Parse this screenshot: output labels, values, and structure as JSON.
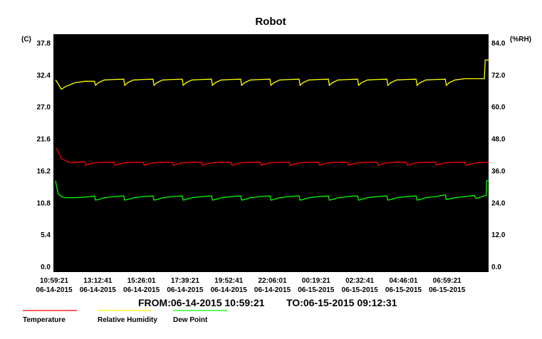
{
  "chart_data": {
    "type": "line",
    "title": "Robot",
    "left_unit": "(C)",
    "right_unit": "(%RH)",
    "left_ticks": [
      "37.8",
      "32.4",
      "27.0",
      "21.6",
      "16.2",
      "10.8",
      "5.4",
      "0.0"
    ],
    "left_ylim": [
      0.0,
      37.8
    ],
    "right_ticks": [
      "84.0",
      "72.0",
      "60.0",
      "48.0",
      "36.0",
      "24.0",
      "12.0",
      "0.0"
    ],
    "right_ylim": [
      0.0,
      84.0
    ],
    "x_ticks": [
      {
        "time": "10:59:21",
        "date": "06-14-2015"
      },
      {
        "time": "13:12:41",
        "date": "06-14-2015"
      },
      {
        "time": "15:26:01",
        "date": "06-14-2015"
      },
      {
        "time": "17:39:21",
        "date": "06-14-2015"
      },
      {
        "time": "19:52:41",
        "date": "06-14-2015"
      },
      {
        "time": "22:06:01",
        "date": "06-14-2015"
      },
      {
        "time": "00:19:21",
        "date": "06-15-2015"
      },
      {
        "time": "02:32:41",
        "date": "06-15-2015"
      },
      {
        "time": "04:46:01",
        "date": "06-15-2015"
      },
      {
        "time": "06:59:21",
        "date": "06-15-2015"
      }
    ],
    "x_range_hours": [
      0.0,
      22.22
    ],
    "grid": false,
    "background": "#000000",
    "range_text": {
      "from": "FROM:06-14-2015 10:59:21",
      "to": "TO:06-15-2015 09:12:31"
    },
    "series": [
      {
        "name": "Temperature",
        "axis": "left",
        "color": "#ff0000",
        "hours": [
          0.0,
          0.07,
          0.3,
          0.7,
          1.2,
          1.5,
          1.55,
          1.65,
          2.0,
          2.5,
          2.8,
          3.0,
          3.05,
          3.15,
          3.5,
          4.0,
          4.3,
          4.5,
          4.55,
          4.65,
          5.0,
          5.5,
          5.8,
          6.0,
          6.05,
          6.15,
          6.5,
          7.0,
          7.3,
          7.5,
          7.55,
          7.65,
          8.0,
          8.5,
          8.8,
          9.0,
          9.05,
          9.15,
          9.5,
          10.0,
          10.3,
          10.5,
          10.55,
          10.65,
          11.0,
          11.5,
          11.8,
          12.0,
          12.05,
          12.15,
          12.5,
          13.0,
          13.3,
          13.5,
          13.55,
          13.65,
          14.0,
          14.5,
          14.8,
          15.0,
          15.05,
          15.15,
          15.5,
          16.0,
          16.3,
          16.5,
          16.55,
          16.65,
          17.0,
          17.5,
          17.8,
          18.0,
          18.05,
          18.15,
          18.5,
          19.0,
          19.3,
          19.5,
          19.55,
          19.65,
          20.0,
          20.5,
          20.8,
          21.0,
          21.05,
          21.15,
          21.6,
          22.22
        ],
        "values": [
          20.0,
          19.8,
          18.2,
          17.6,
          17.6,
          17.7,
          17.1,
          17.2,
          17.5,
          17.6,
          17.6,
          17.6,
          17.1,
          17.2,
          17.5,
          17.6,
          17.6,
          17.6,
          17.1,
          17.2,
          17.5,
          17.6,
          17.6,
          17.6,
          17.1,
          17.2,
          17.5,
          17.6,
          17.6,
          17.6,
          17.1,
          17.2,
          17.5,
          17.6,
          17.6,
          17.6,
          17.1,
          17.2,
          17.5,
          17.6,
          17.6,
          17.6,
          17.1,
          17.2,
          17.5,
          17.6,
          17.6,
          17.6,
          17.1,
          17.2,
          17.5,
          17.6,
          17.6,
          17.6,
          17.1,
          17.2,
          17.5,
          17.6,
          17.6,
          17.6,
          17.1,
          17.2,
          17.5,
          17.6,
          17.6,
          17.6,
          17.1,
          17.2,
          17.5,
          17.6,
          17.6,
          17.6,
          17.1,
          17.2,
          17.5,
          17.6,
          17.6,
          17.6,
          17.1,
          17.2,
          17.5,
          17.6,
          17.6,
          17.6,
          17.1,
          17.2,
          17.5,
          17.6
        ]
      },
      {
        "name": "Relative Humidity",
        "axis": "right",
        "color": "#ffff00",
        "hours": [
          0.0,
          0.1,
          0.3,
          0.5,
          1.0,
          1.5,
          1.8,
          2.0,
          2.05,
          2.2,
          2.5,
          3.0,
          3.5,
          3.55,
          3.7,
          4.0,
          4.5,
          5.0,
          5.05,
          5.2,
          5.5,
          6.0,
          6.5,
          6.55,
          6.7,
          7.0,
          7.5,
          8.0,
          8.05,
          8.2,
          8.5,
          9.0,
          9.5,
          9.55,
          9.7,
          10.0,
          10.5,
          11.0,
          11.05,
          11.2,
          11.5,
          12.0,
          12.5,
          12.55,
          12.7,
          13.0,
          13.5,
          14.0,
          14.05,
          14.2,
          14.5,
          15.0,
          15.5,
          15.55,
          15.7,
          16.0,
          16.5,
          17.0,
          17.05,
          17.2,
          17.5,
          18.0,
          18.5,
          18.55,
          18.7,
          19.0,
          19.5,
          20.0,
          20.05,
          20.2,
          20.5,
          21.0,
          21.9,
          22.0,
          22.05,
          22.22
        ],
        "values": [
          70.0,
          69.0,
          66.5,
          67.5,
          69.0,
          69.5,
          69.5,
          69.5,
          68.0,
          69.0,
          70.0,
          70.2,
          70.3,
          68.0,
          69.0,
          70.0,
          70.2,
          70.3,
          68.0,
          69.0,
          70.0,
          70.2,
          70.3,
          68.0,
          69.0,
          70.0,
          70.2,
          70.3,
          68.0,
          69.0,
          70.0,
          70.2,
          70.3,
          68.0,
          69.0,
          70.0,
          70.2,
          70.3,
          68.0,
          69.0,
          70.0,
          70.2,
          70.3,
          68.0,
          69.0,
          70.0,
          70.2,
          70.3,
          68.0,
          69.0,
          70.0,
          70.2,
          70.3,
          68.0,
          69.0,
          70.0,
          70.2,
          70.3,
          68.0,
          69.0,
          70.0,
          70.2,
          70.3,
          68.0,
          69.0,
          70.0,
          70.2,
          70.3,
          68.0,
          69.0,
          70.0,
          70.5,
          70.5,
          70.5,
          77.5,
          77.5
        ]
      },
      {
        "name": "Dew Point",
        "axis": "left",
        "color": "#00ff00",
        "hours": [
          0.0,
          0.05,
          0.15,
          0.3,
          0.5,
          1.0,
          1.5,
          1.8,
          2.0,
          2.05,
          2.2,
          2.5,
          3.0,
          3.5,
          3.55,
          3.7,
          4.0,
          4.5,
          5.0,
          5.05,
          5.2,
          5.5,
          6.0,
          6.5,
          6.55,
          6.7,
          7.0,
          7.5,
          8.0,
          8.05,
          8.2,
          8.5,
          9.0,
          9.5,
          9.55,
          9.7,
          10.0,
          10.5,
          11.0,
          11.05,
          11.2,
          11.5,
          12.0,
          12.5,
          12.55,
          12.7,
          13.0,
          13.5,
          14.0,
          14.05,
          14.2,
          14.5,
          15.0,
          15.5,
          15.55,
          15.7,
          16.0,
          16.5,
          17.0,
          17.05,
          17.2,
          17.5,
          18.0,
          18.5,
          18.55,
          18.7,
          19.0,
          19.5,
          20.0,
          20.05,
          20.2,
          20.5,
          21.0,
          21.5,
          21.55,
          21.7,
          22.1,
          22.12,
          22.22
        ],
        "values": [
          14.5,
          13.5,
          12.2,
          11.8,
          11.6,
          11.6,
          11.7,
          11.8,
          11.9,
          11.2,
          11.3,
          11.6,
          11.8,
          11.9,
          11.2,
          11.3,
          11.6,
          11.8,
          11.9,
          11.2,
          11.3,
          11.6,
          11.8,
          11.9,
          11.2,
          11.3,
          11.6,
          11.8,
          11.9,
          11.2,
          11.3,
          11.6,
          11.8,
          11.9,
          11.2,
          11.3,
          11.6,
          11.8,
          11.9,
          11.2,
          11.3,
          11.6,
          11.8,
          11.9,
          11.2,
          11.3,
          11.6,
          11.8,
          11.9,
          11.2,
          11.3,
          11.6,
          11.8,
          11.9,
          11.2,
          11.3,
          11.6,
          11.8,
          11.9,
          11.2,
          11.3,
          11.6,
          11.8,
          11.9,
          11.2,
          11.3,
          11.6,
          11.8,
          12.1,
          11.3,
          11.4,
          11.6,
          11.8,
          12.0,
          11.5,
          11.6,
          12.0,
          14.5,
          14.5
        ]
      }
    ]
  }
}
